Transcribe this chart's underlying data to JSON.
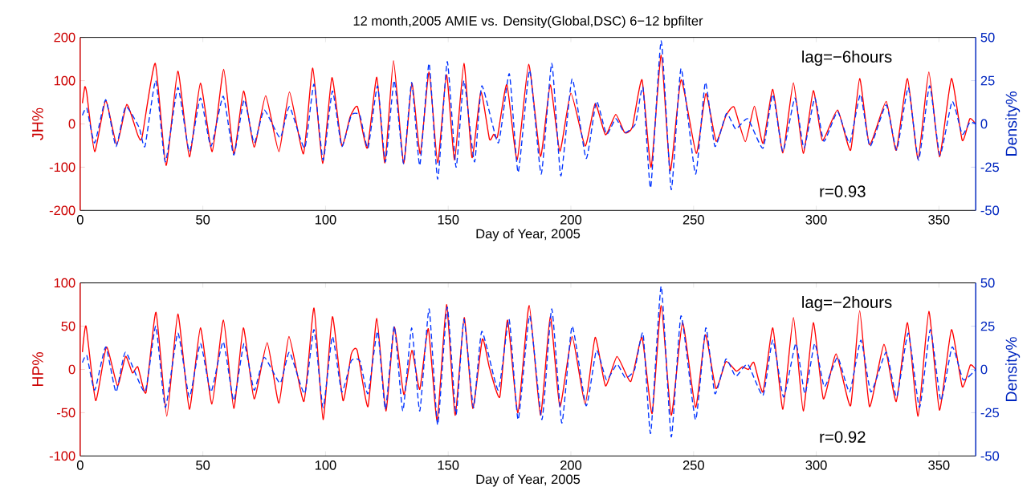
{
  "chart_data": [
    {
      "type": "line",
      "title": "12 month,2005 AMIE vs. Density(Global,DSC) 6−12 bpfilter",
      "xlabel": "Day of Year, 2005",
      "ylabel": "JH%",
      "y2label": "Density%",
      "xlim": [
        0,
        365
      ],
      "xticks": [
        0,
        50,
        100,
        150,
        200,
        250,
        300,
        350
      ],
      "ylim": [
        -200,
        200
      ],
      "yticks": [
        -200,
        -100,
        0,
        100,
        200
      ],
      "y2lim": [
        -50,
        50
      ],
      "y2ticks": [
        -50,
        -25,
        0,
        25,
        50
      ],
      "grid": false,
      "marker": "none",
      "annotations": [
        "lag=−6hours",
        "r=0.93"
      ],
      "series": [
        {
          "color": "#ff0000",
          "line_style": "solid",
          "x": [
            0.9,
            1.9,
            2.7,
            5.9,
            10.4,
            14.9,
            19,
            23.5,
            25.2,
            30.6,
            35,
            39.8,
            44.5,
            49,
            53.8,
            58.5,
            62.6,
            66.6,
            70.9,
            75.6,
            81,
            85.3,
            91,
            94.8,
            98.8,
            102.6,
            106.6,
            110,
            113,
            117,
            120.9,
            124.2,
            127.7,
            131.8,
            135.2,
            138.6,
            142.2,
            145.7,
            149.3,
            152.6,
            156.4,
            159.7,
            163.3,
            166.8,
            168.5,
            170.1,
            173.9,
            178.1,
            182.8,
            187.6,
            191.6,
            195.5,
            200,
            205.8,
            209.9,
            214.1,
            218.3,
            221.9,
            225,
            229,
            232.7,
            236.8,
            240.5,
            244.9,
            251.1,
            255,
            259.2,
            263.2,
            266.5,
            271.1,
            274.8,
            278.3,
            282.3,
            286.4,
            290.7,
            294.7,
            298.8,
            302.5,
            308.7,
            314,
            317.7,
            321.7,
            328.5,
            332.6,
            337.2,
            341.5,
            345.9,
            350.2,
            355.1,
            359.5,
            362.6,
            365
          ],
          "values": [
            48,
            86,
            70,
            -64,
            54,
            -48,
            45,
            -26,
            -31,
            140,
            -96,
            122,
            -76,
            94,
            -64,
            126,
            -70,
            76,
            -54,
            65,
            -64,
            74,
            -69,
            129,
            -91,
            107,
            -50,
            16,
            40,
            -56,
            108,
            -90,
            146,
            -91,
            94,
            -69,
            120,
            -90,
            114,
            -83,
            140,
            -78,
            74,
            -35,
            -24,
            -29,
            91,
            -83,
            138,
            -75,
            90,
            -63,
            71,
            -51,
            47,
            -25,
            22,
            -20,
            -8,
            102,
            -100,
            159,
            -108,
            102,
            -68,
            70,
            -40,
            19,
            39,
            -41,
            41,
            -45,
            80,
            -67,
            95,
            -68,
            77,
            -38,
            32,
            -61,
            105,
            -48,
            52,
            -61,
            105,
            -81,
            120,
            -76,
            105,
            -38,
            12,
            0
          ]
        },
        {
          "color": "#0033ff",
          "line_style": "dashed",
          "axis": "y2",
          "x": [
            0.9,
            2.7,
            5.9,
            10.4,
            14.6,
            18.5,
            24,
            26.4,
            30.8,
            34.7,
            39.8,
            44.5,
            49,
            53.3,
            58.3,
            62.6,
            66.8,
            70.9,
            75,
            81.5,
            85.3,
            91.5,
            95.3,
            99,
            102.8,
            106.6,
            110.5,
            114,
            117.3,
            121.2,
            124.4,
            128,
            131.8,
            135.1,
            138.4,
            142.2,
            145.7,
            149.6,
            153.2,
            156.4,
            160.7,
            163.7,
            170.4,
            174.9,
            178.5,
            183.2,
            187.9,
            192.2,
            195.9,
            200.5,
            206.2,
            210.4,
            214.5,
            218.3,
            221.9,
            226.3,
            229.4,
            232.5,
            236.8,
            240.9,
            244.9,
            250.8,
            254.8,
            258.7,
            263.4,
            267.2,
            272.1,
            278.3,
            282.3,
            286.4,
            291.3,
            295,
            299.4,
            303.1,
            308.7,
            313.6,
            318,
            321.9,
            328.5,
            332.8,
            337.5,
            341.7,
            346.2,
            350.4,
            355.4,
            359.5,
            362.6,
            365
          ],
          "values": [
            5,
            9,
            -11,
            14,
            -13,
            10,
            -2,
            -13,
            25,
            -22,
            21,
            -16,
            15,
            -13,
            16,
            -18,
            14,
            -11,
            8,
            -8,
            10,
            -14,
            23,
            -21,
            19,
            -13,
            5,
            5,
            -14,
            22,
            -22,
            25,
            -23,
            24,
            -24,
            35,
            -32,
            36,
            -25,
            25,
            -22,
            22,
            -11,
            29,
            -28,
            31,
            -29,
            35,
            -30,
            26,
            -20,
            13,
            -6,
            3,
            -5,
            0,
            21,
            -37,
            48,
            -38,
            32,
            -29,
            24,
            -13,
            6,
            -3,
            3,
            -14,
            17,
            -16,
            15,
            -14,
            15,
            -10,
            7,
            -11,
            17,
            -13,
            11,
            -15,
            21,
            -21,
            22,
            -18,
            13,
            -6,
            1,
            0
          ]
        }
      ]
    },
    {
      "type": "line",
      "xlabel": "Day of Year, 2005",
      "ylabel": "HP%",
      "y2label": "Density%",
      "xlim": [
        0,
        365
      ],
      "xticks": [
        0,
        50,
        100,
        150,
        200,
        250,
        300,
        350
      ],
      "ylim": [
        -100,
        100
      ],
      "yticks": [
        -100,
        -50,
        0,
        50,
        100
      ],
      "y2lim": [
        -50,
        50
      ],
      "y2ticks": [
        -50,
        -25,
        0,
        25,
        50
      ],
      "grid": false,
      "marker": "none",
      "annotations": [
        "lag=−2hours",
        "r=0.92"
      ],
      "series": [
        {
          "color": "#ff0000",
          "line_style": "solid",
          "x": [
            0.9,
            2.4,
            6.3,
            10.7,
            15.2,
            18.5,
            21.3,
            23.5,
            26.8,
            30.9,
            35.3,
            39.8,
            44.5,
            49,
            53.7,
            58.4,
            62.6,
            66.5,
            70.9,
            76.2,
            81,
            85.1,
            91.2,
            95.3,
            99,
            102.8,
            107.1,
            110.5,
            112.9,
            117.3,
            120.9,
            124.6,
            128,
            131.9,
            135.2,
            138.4,
            141.9,
            145.5,
            149.3,
            152.8,
            156.5,
            160,
            163.9,
            166.8,
            171,
            174.2,
            178.4,
            183,
            187.6,
            191.6,
            195.5,
            200.5,
            205.8,
            209.9,
            214.1,
            218.8,
            224.4,
            229,
            233.1,
            236.8,
            240.9,
            245.5,
            250.8,
            254.8,
            259.1,
            263.2,
            267.4,
            269.9,
            272.4,
            274.6,
            278.3,
            282.3,
            286.4,
            290.7,
            294.7,
            298.8,
            302.9,
            308.1,
            314,
            317.7,
            321.7,
            327.6,
            332.6,
            337.2,
            341.5,
            345.9,
            350.2,
            355.1,
            359.5,
            362.8,
            365
          ],
          "values": [
            20,
            50,
            -36,
            26,
            -19,
            15,
            -4,
            3,
            -27,
            66,
            -54,
            64,
            -46,
            48,
            -40,
            57,
            -45,
            48,
            -34,
            31,
            -39,
            38,
            -37,
            71,
            -58,
            61,
            -36,
            18,
            22,
            -43,
            59,
            -48,
            49,
            -29,
            22,
            -23,
            47,
            -59,
            75,
            -53,
            60,
            -45,
            35,
            2,
            -32,
            57,
            -50,
            74,
            -53,
            61,
            -43,
            38,
            -40,
            37,
            -19,
            15,
            -14,
            37,
            -51,
            74,
            -53,
            54,
            -44,
            40,
            -22,
            9,
            -2,
            3,
            0,
            8,
            -26,
            48,
            -46,
            60,
            -48,
            54,
            -34,
            18,
            -42,
            68,
            -43,
            29,
            -37,
            54,
            -54,
            67,
            -47,
            46,
            -20,
            5,
            0
          ]
        },
        {
          "color": "#0033ff",
          "line_style": "dashed",
          "axis": "y2",
          "x": [
            0.9,
            2.7,
            5.9,
            10.4,
            14.6,
            18.5,
            26.4,
            30.8,
            34.7,
            39.8,
            44.5,
            49,
            53.3,
            58.3,
            62.6,
            66.8,
            70.9,
            75,
            81.5,
            85.3,
            91.5,
            95.3,
            99,
            102.8,
            106.6,
            110.5,
            114,
            117.3,
            121.2,
            124.4,
            128,
            131.5,
            135.1,
            138.4,
            142.2,
            145.7,
            149.6,
            153.2,
            156.4,
            160.3,
            163.7,
            170.4,
            174.8,
            178.5,
            183.2,
            188.2,
            192.2,
            196.3,
            200.5,
            206.2,
            210.4,
            214.5,
            218.8,
            222.3,
            226,
            229.4,
            232.5,
            236.8,
            240.9,
            244.9,
            250.8,
            255,
            258.7,
            263.2,
            267.2,
            272.1,
            278.3,
            282.3,
            286.7,
            291.7,
            295.4,
            299.4,
            303.3,
            308.7,
            313.6,
            318.2,
            322.3,
            328.5,
            332.8,
            337.5,
            342.1,
            346.5,
            350.8,
            355.4,
            359.9,
            365
          ],
          "values": [
            4,
            8,
            -12,
            13,
            -13,
            10,
            -13,
            25,
            -22,
            21,
            -16,
            15,
            -13,
            16,
            -18,
            15,
            -12,
            7,
            -8,
            10,
            -14,
            23,
            -22,
            19,
            -13,
            5,
            5,
            -14,
            22,
            -23,
            25,
            -24,
            24,
            -24,
            35,
            -32,
            36,
            -26,
            29,
            -22,
            22,
            -12,
            29,
            -29,
            31,
            -29,
            35,
            -31,
            25,
            -21,
            11,
            -6,
            3,
            -5,
            0,
            21,
            -37,
            48,
            -39,
            31,
            -29,
            24,
            -14,
            6,
            -4,
            3,
            -15,
            17,
            -16,
            15,
            -14,
            15,
            -10,
            7,
            -13,
            17,
            -13,
            10,
            -16,
            21,
            -22,
            23,
            -18,
            13,
            -6,
            0
          ]
        }
      ]
    }
  ]
}
